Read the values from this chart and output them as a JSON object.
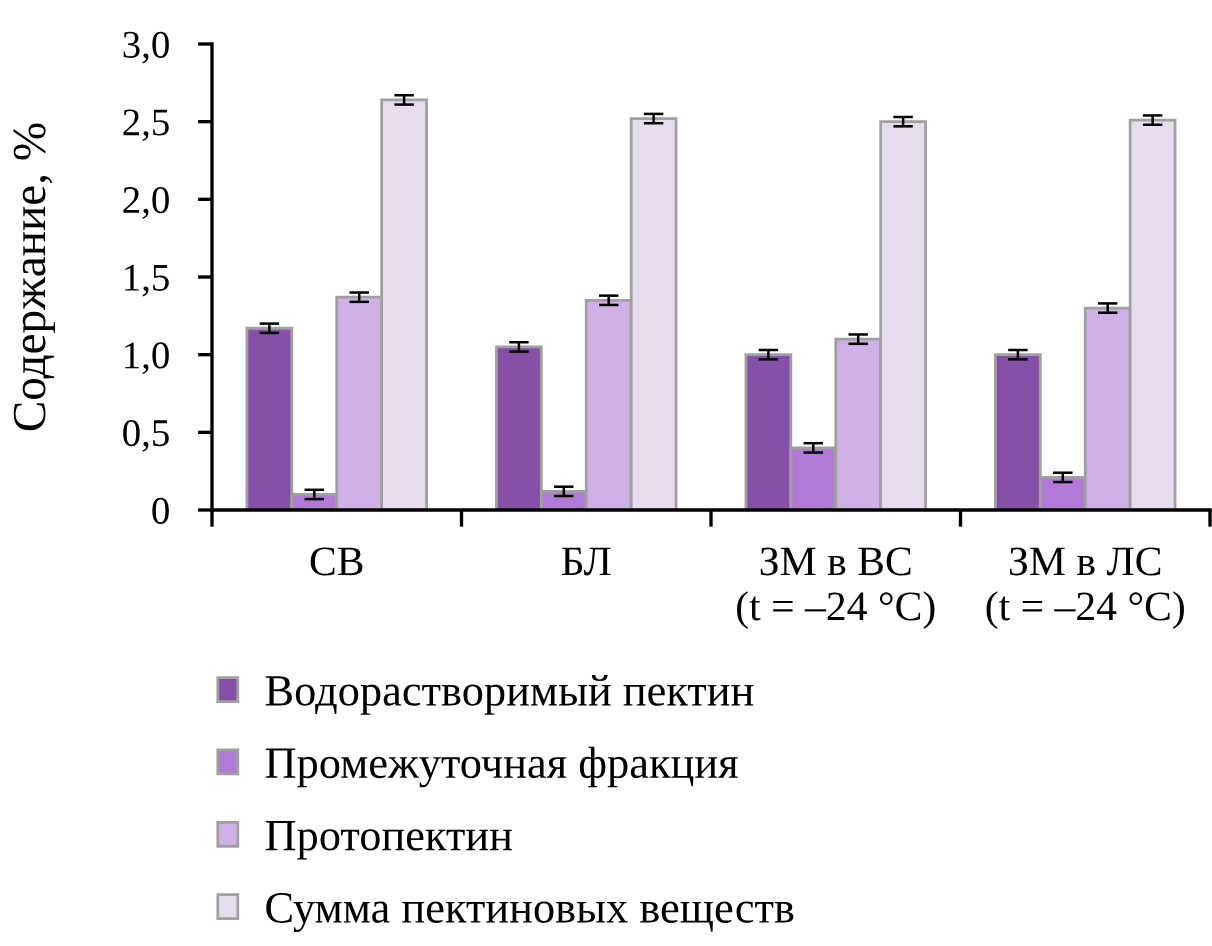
{
  "chart_data": {
    "type": "bar",
    "ylabel": "Содержание, %",
    "categories": [
      "СВ",
      "БЛ",
      "ЗМ в ВС\n(t = –24 °C)",
      "ЗМ в ЛС\n(t = –24 °C)"
    ],
    "series": [
      {
        "name": "Водорастворимый пектин",
        "color": "#8750a8",
        "values": [
          1.17,
          1.05,
          1.0,
          1.0
        ],
        "errors": [
          0.03,
          0.03,
          0.03,
          0.03
        ]
      },
      {
        "name": "Промежуточная фракция",
        "color": "#b07ad6",
        "values": [
          0.1,
          0.12,
          0.4,
          0.21
        ],
        "errors": [
          0.03,
          0.03,
          0.03,
          0.03
        ]
      },
      {
        "name": "Протопектин",
        "color": "#cfb0e7",
        "values": [
          1.37,
          1.35,
          1.1,
          1.3
        ],
        "errors": [
          0.03,
          0.03,
          0.03,
          0.03
        ]
      },
      {
        "name": "Сумма пектиновых веществ",
        "color": "#e7dced",
        "values": [
          2.64,
          2.52,
          2.5,
          2.51
        ],
        "errors": [
          0.03,
          0.03,
          0.03,
          0.03
        ]
      }
    ],
    "ylim": [
      0,
      3
    ],
    "yticks": [
      0,
      {
        "value": 0.5,
        "label": "0,5"
      },
      {
        "value": 1,
        "label": "1,0"
      },
      {
        "value": 1.5,
        "label": "1,5"
      },
      {
        "value": 2,
        "label": "2,0"
      },
      {
        "value": 2.5,
        "label": "2,5"
      },
      {
        "value": 3,
        "label": "3,0"
      }
    ],
    "legend": "bottom",
    "grid": false
  }
}
